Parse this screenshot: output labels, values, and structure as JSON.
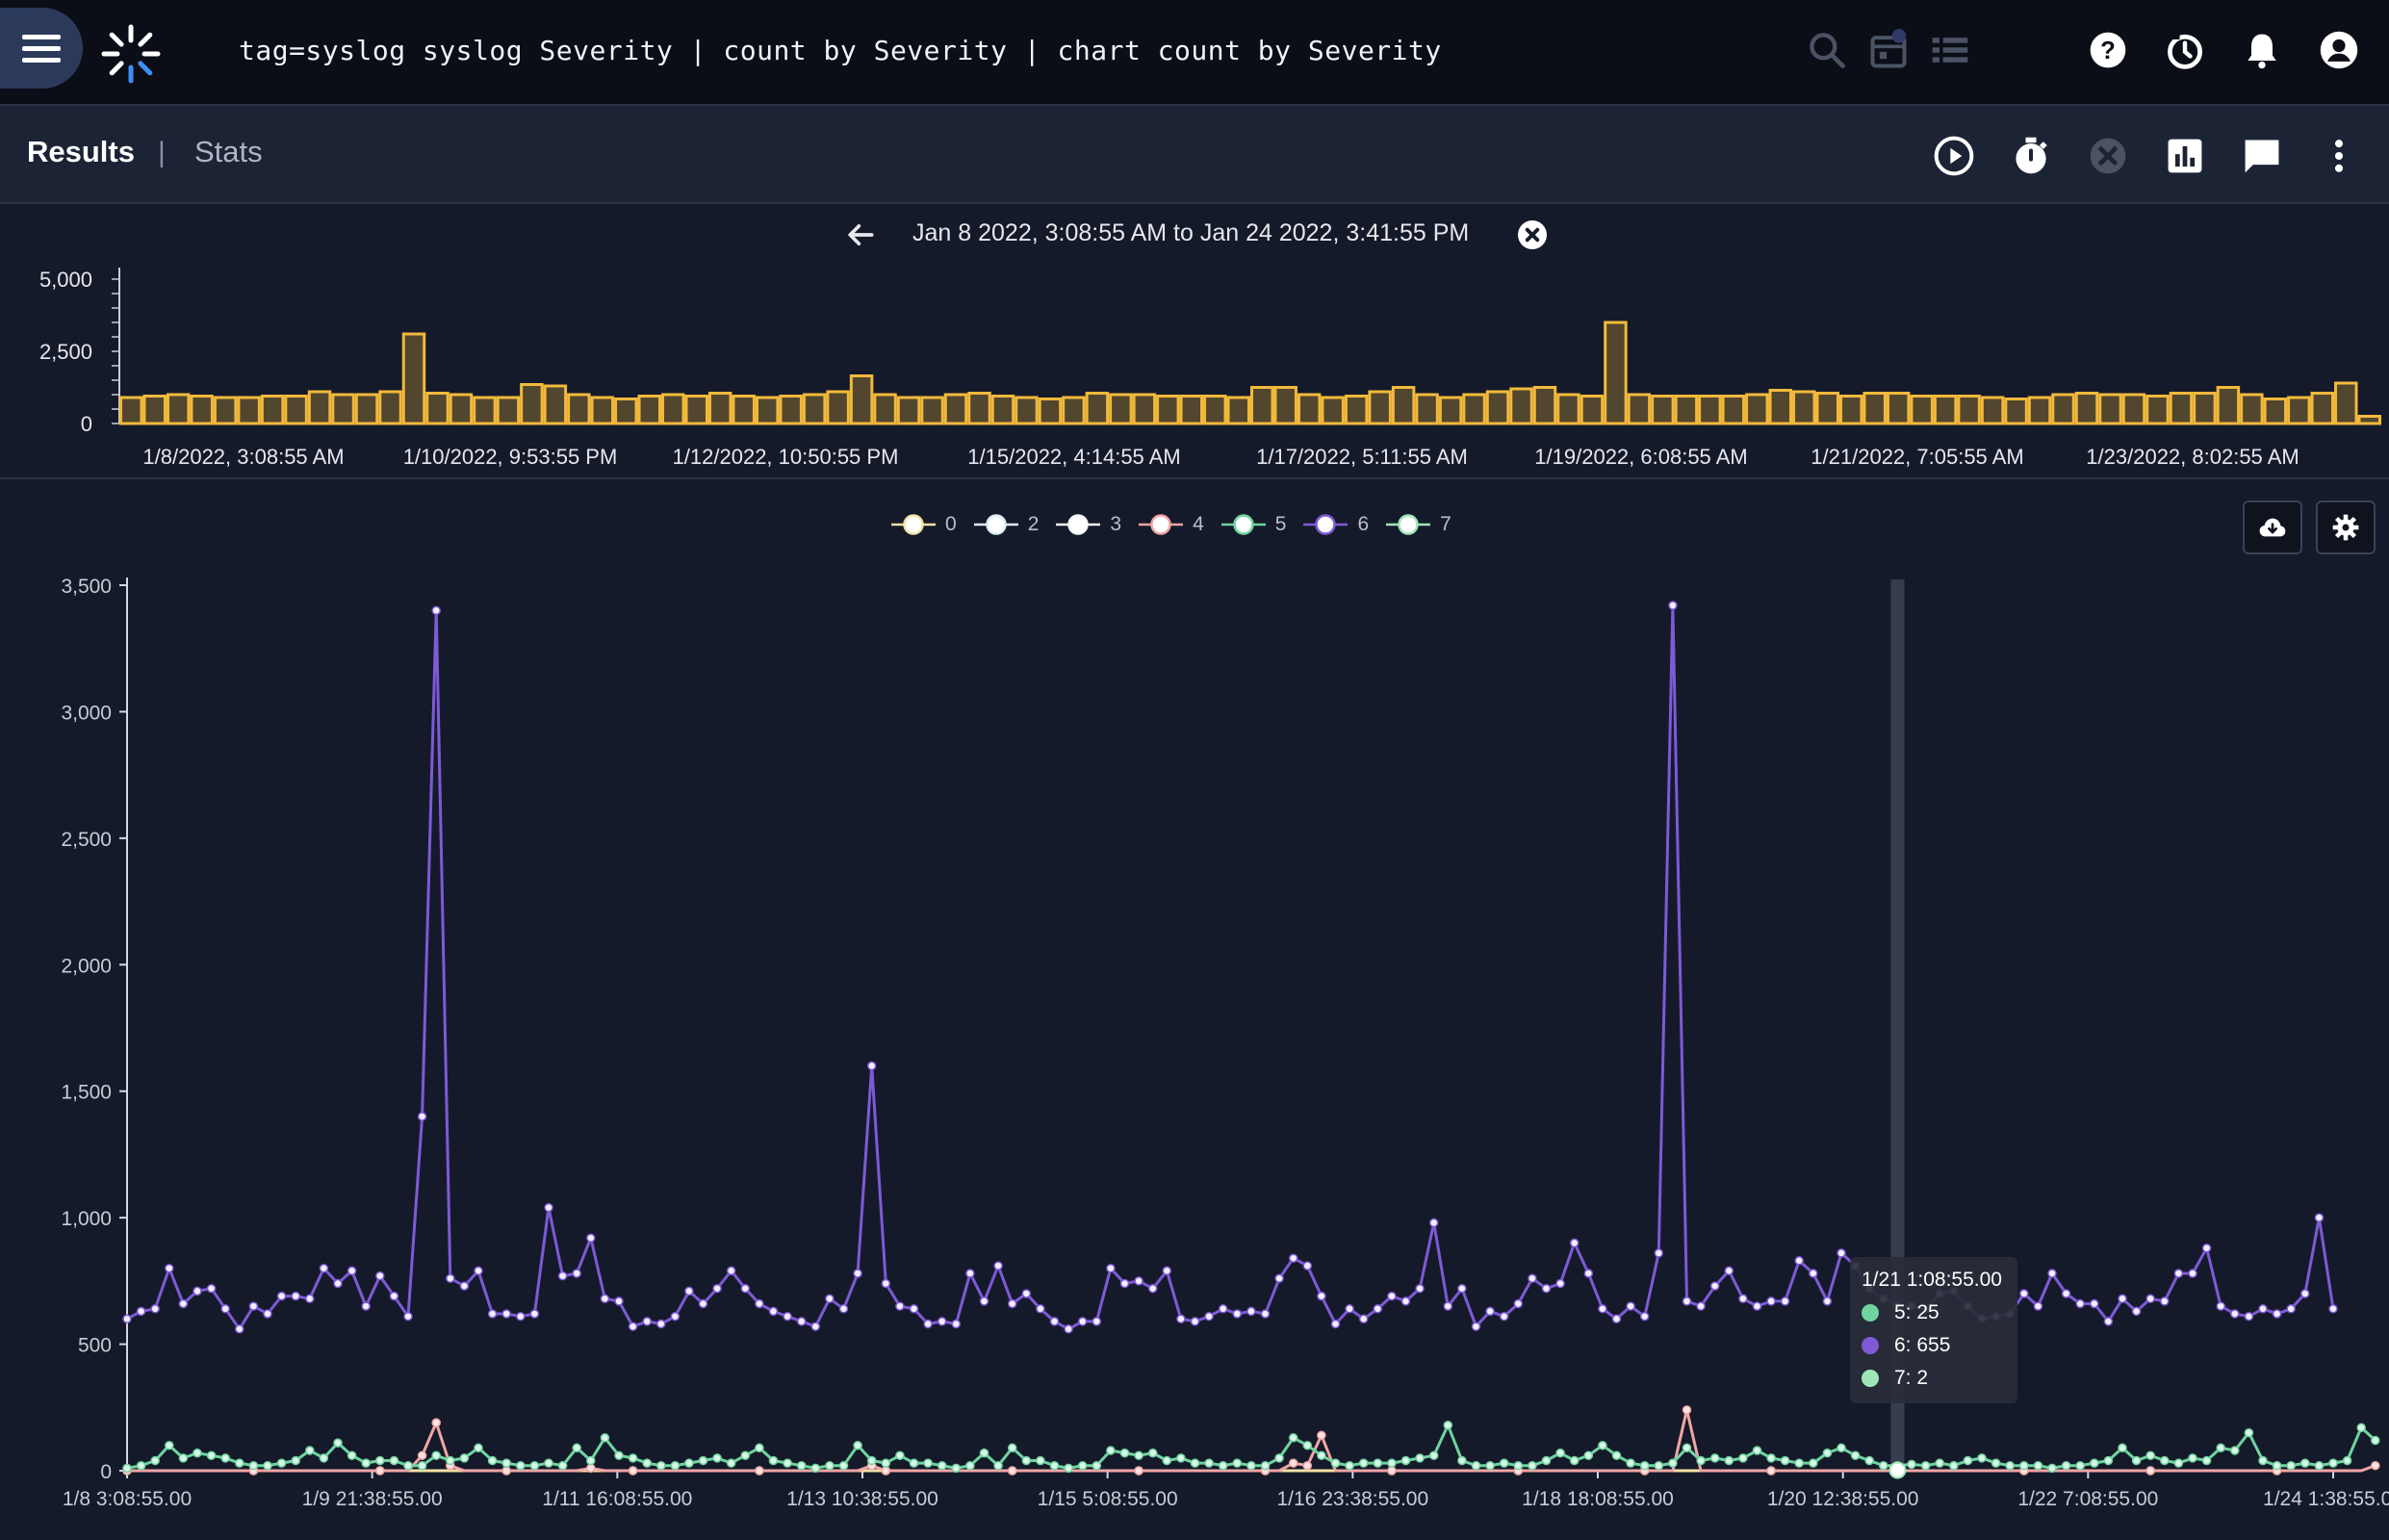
{
  "topbar": {
    "query": "tag=syslog syslog Severity | count by Severity | chart count by Severity",
    "icons": [
      "menu-icon",
      "search-icon",
      "calendar-icon",
      "list-icon",
      "help-icon",
      "history-icon",
      "bell-icon",
      "account-icon"
    ]
  },
  "subbar": {
    "tabs": {
      "results": "Results",
      "separator": "|",
      "stats": "Stats"
    },
    "icons": [
      "play-icon",
      "timer-icon",
      "cancel-icon",
      "chart-icon",
      "comment-icon",
      "more-icon"
    ]
  },
  "range": {
    "text": "Jan 8 2022, 3:08:55 AM to Jan 24 2022, 3:41:55 PM"
  },
  "overview": {
    "yticks": [
      "5,000",
      "2,500",
      "0"
    ],
    "xticks": [
      "1/8/2022, 3:08:55 AM",
      "1/10/2022, 9:53:55 PM",
      "1/12/2022, 10:50:55 PM",
      "1/15/2022, 4:14:55 AM",
      "1/17/2022, 5:11:55 AM",
      "1/19/2022, 6:08:55 AM",
      "1/21/2022, 7:05:55 AM",
      "1/23/2022, 8:02:55 AM"
    ],
    "bar_color": "#f2b93b"
  },
  "chart_data": {
    "type": "line",
    "x_ticks": [
      "1/8 3:08:55.00",
      "1/9 21:38:55.00",
      "1/11 16:08:55.00",
      "1/13 10:38:55.00",
      "1/15 5:08:55.00",
      "1/16 23:38:55.00",
      "1/18 18:08:55.00",
      "1/20 12:38:55.00",
      "1/22 7:08:55.00",
      "1/24 1:38:55.00"
    ],
    "y_ticks": [
      "0",
      "500",
      "1,000",
      "1,500",
      "2,000",
      "2,500",
      "3,000",
      "3,500"
    ],
    "ylim": [
      0,
      3500
    ],
    "grid": false,
    "legend_position": "top-center",
    "series": [
      {
        "name": "0",
        "color": "#f2e2a6"
      },
      {
        "name": "2",
        "color": "#dbeef4"
      },
      {
        "name": "3",
        "color": "#f4f6f8"
      },
      {
        "name": "4",
        "color": "#f0a5a5"
      },
      {
        "name": "5",
        "color": "#6fd4a0"
      },
      {
        "name": "6",
        "color": "#7e5ad6"
      },
      {
        "name": "7",
        "color": "#9ee6b8"
      }
    ],
    "series6_values": [
      600,
      630,
      640,
      800,
      660,
      710,
      720,
      640,
      560,
      650,
      620,
      690,
      690,
      680,
      800,
      740,
      790,
      650,
      770,
      690,
      610,
      1400,
      3400,
      760,
      730,
      790,
      620,
      620,
      610,
      620,
      1040,
      770,
      780,
      920,
      680,
      670,
      570,
      590,
      580,
      610,
      710,
      660,
      720,
      790,
      720,
      660,
      630,
      610,
      590,
      570,
      680,
      640,
      780,
      1600,
      740,
      650,
      640,
      580,
      590,
      580,
      780,
      670,
      810,
      660,
      700,
      640,
      590,
      560,
      590,
      590,
      800,
      740,
      750,
      720,
      790,
      600,
      590,
      610,
      640,
      620,
      630,
      620,
      760,
      840,
      810,
      690,
      580,
      640,
      600,
      640,
      690,
      670,
      720,
      980,
      650,
      720,
      570,
      630,
      610,
      660,
      760,
      720,
      740,
      900,
      780,
      640,
      600,
      650,
      610,
      860,
      3420,
      670,
      650,
      730,
      790,
      680,
      650,
      670,
      670,
      830,
      780,
      670,
      860,
      810,
      720,
      680,
      655,
      650,
      640,
      700,
      710,
      650,
      600,
      610,
      620,
      700,
      650,
      780,
      700,
      660,
      660,
      590,
      680,
      630,
      680,
      670,
      780,
      780,
      880,
      650,
      620,
      610,
      640,
      620,
      640,
      700,
      1000,
      640
    ],
    "series5_values": [
      10,
      20,
      40,
      100,
      50,
      70,
      60,
      50,
      30,
      20,
      20,
      30,
      40,
      80,
      50,
      110,
      60,
      30,
      40,
      40,
      20,
      20,
      60,
      40,
      50,
      90,
      40,
      30,
      20,
      20,
      30,
      20,
      90,
      40,
      130,
      60,
      50,
      30,
      20,
      20,
      30,
      40,
      50,
      30,
      60,
      90,
      40,
      30,
      20,
      10,
      20,
      20,
      100,
      40,
      30,
      60,
      30,
      30,
      20,
      10,
      20,
      70,
      20,
      90,
      40,
      40,
      20,
      10,
      20,
      20,
      80,
      70,
      60,
      70,
      40,
      50,
      30,
      30,
      20,
      30,
      20,
      20,
      50,
      130,
      100,
      60,
      30,
      20,
      30,
      30,
      30,
      40,
      50,
      60,
      180,
      40,
      20,
      20,
      30,
      20,
      20,
      40,
      70,
      40,
      60,
      100,
      60,
      30,
      20,
      20,
      30,
      90,
      40,
      50,
      40,
      50,
      80,
      50,
      40,
      30,
      30,
      70,
      90,
      60,
      40,
      20,
      20,
      25,
      20,
      30,
      20,
      40,
      50,
      30,
      20,
      20,
      20,
      10,
      20,
      20,
      30,
      40,
      90,
      40,
      60,
      40,
      30,
      50,
      40,
      90,
      80,
      150,
      40,
      20,
      20,
      30,
      20,
      30,
      40,
      170,
      120
    ],
    "series4_values": [
      0,
      0,
      0,
      0,
      0,
      0,
      0,
      0,
      0,
      0,
      0,
      0,
      0,
      0,
      0,
      0,
      0,
      0,
      0,
      0,
      0,
      60,
      190,
      20,
      0,
      0,
      0,
      0,
      0,
      0,
      0,
      0,
      0,
      10,
      0,
      0,
      0,
      0,
      0,
      0,
      0,
      0,
      0,
      0,
      0,
      0,
      0,
      0,
      0,
      0,
      0,
      0,
      0,
      20,
      0,
      0,
      0,
      0,
      0,
      0,
      0,
      0,
      0,
      0,
      0,
      0,
      0,
      0,
      0,
      0,
      0,
      0,
      0,
      0,
      0,
      0,
      0,
      0,
      0,
      0,
      0,
      0,
      0,
      30,
      20,
      140,
      0,
      0,
      0,
      0,
      0,
      0,
      0,
      0,
      0,
      0,
      0,
      0,
      0,
      0,
      0,
      0,
      0,
      0,
      0,
      0,
      0,
      0,
      0,
      0,
      0,
      240,
      0,
      0,
      0,
      0,
      0,
      0,
      0,
      0,
      0,
      0,
      0,
      0,
      0,
      0,
      0,
      0,
      0,
      0,
      0,
      0,
      0,
      0,
      0,
      0,
      0,
      0,
      0,
      0,
      0,
      0,
      0,
      0,
      0,
      0,
      0,
      0,
      0,
      0,
      0,
      0,
      0,
      0,
      0,
      0,
      0,
      0,
      0,
      0,
      20
    ],
    "overview_values": [
      900,
      950,
      1000,
      950,
      900,
      900,
      950,
      950,
      1100,
      1000,
      1000,
      1100,
      3100,
      1050,
      1000,
      900,
      900,
      1350,
      1300,
      1000,
      900,
      850,
      950,
      1000,
      950,
      1050,
      950,
      900,
      950,
      1000,
      1100,
      1650,
      1000,
      900,
      900,
      1000,
      1050,
      950,
      900,
      850,
      900,
      1050,
      1000,
      1000,
      950,
      950,
      950,
      900,
      1250,
      1250,
      1000,
      900,
      950,
      1100,
      1250,
      1000,
      900,
      1000,
      1100,
      1200,
      1250,
      1000,
      950,
      3500,
      1000,
      950,
      950,
      950,
      950,
      1000,
      1150,
      1100,
      1050,
      950,
      1050,
      1050,
      950,
      950,
      950,
      900,
      850,
      900,
      1000,
      1050,
      1000,
      1000,
      950,
      1050,
      1050,
      1250,
      1000,
      850,
      900,
      1050,
      1400,
      250
    ]
  },
  "tooltip": {
    "title": "1/21 1:08:55.00",
    "rows": [
      {
        "label": "5: 25",
        "color": "#6fd4a0"
      },
      {
        "label": "6: 655",
        "color": "#7e5ad6"
      },
      {
        "label": "7: 2",
        "color": "#9ee6b8"
      }
    ]
  },
  "chart_buttons": [
    "cloud-download-icon",
    "gear-icon"
  ]
}
